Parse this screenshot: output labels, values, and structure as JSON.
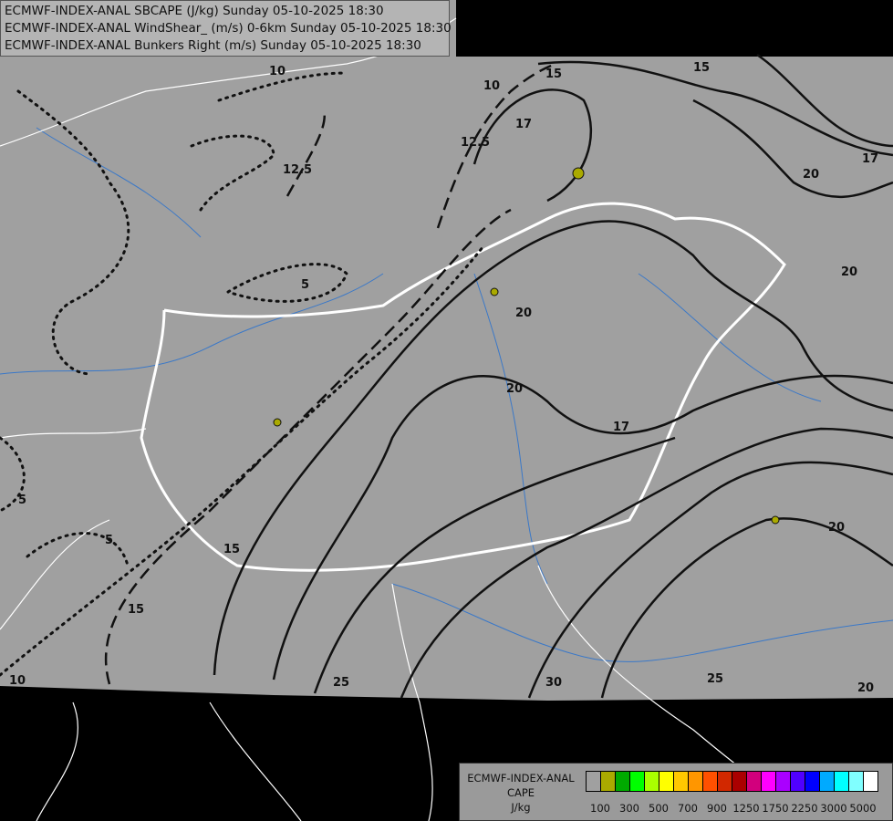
{
  "header": {
    "lines": [
      "ECMWF-INDEX-ANAL SBCAPE (J/kg) Sunday 05-10-2025 18:30",
      "ECMWF-INDEX-ANAL WindShear_ (m/s) 0-6km Sunday 05-10-2025 18:30",
      "ECMWF-INDEX-ANAL Bunkers Right (m/s) Sunday 05-10-2025 18:30"
    ]
  },
  "legend": {
    "title": [
      "ECMWF-INDEX-ANAL",
      "CAPE",
      "J/kg"
    ],
    "colors": [
      "#a0a0a0",
      "#aaaa00",
      "#00aa00",
      "#00ff00",
      "#aaff00",
      "#ffff00",
      "#ffc800",
      "#ff9600",
      "#ff5000",
      "#d22800",
      "#aa0000",
      "#d2007d",
      "#ff00ff",
      "#aa00ff",
      "#5000ff",
      "#0000ff",
      "#00aaff",
      "#00ffff",
      "#80ffff",
      "#ffffff"
    ],
    "labels": [
      "100",
      "300",
      "500",
      "700",
      "900",
      "1250",
      "1750",
      "2250",
      "3000",
      "5000"
    ]
  },
  "contour_labels": [
    "10",
    "12.5",
    "12.5",
    "15",
    "15",
    "15",
    "17",
    "17",
    "17",
    "20",
    "20",
    "20",
    "20",
    "20",
    "25",
    "25",
    "30",
    "5",
    "5",
    "5",
    "10",
    "10",
    "15"
  ],
  "colors": {
    "map": "#a0a0a0",
    "outside": "#000000",
    "borders": "#ffffff",
    "rivers": "#3a78c8",
    "contours": "#111111"
  }
}
